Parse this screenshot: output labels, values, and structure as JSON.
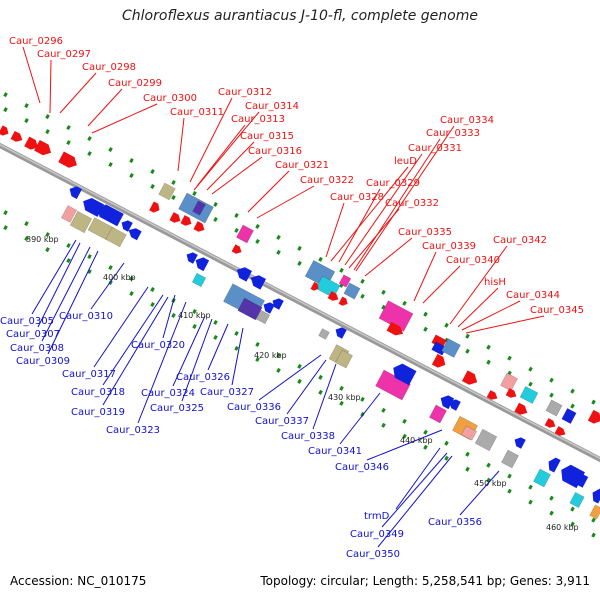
{
  "title": "Chloroflexus aurantiacus J-10-fl, complete genome",
  "footer": {
    "accession": "Accession: NC_010175",
    "summary": "Topology: circular; Length: 5,258,541 bp; Genes: 3,911"
  },
  "colors": {
    "plus_label": "#ee1111",
    "minus_label": "#1111cc",
    "backbone": "#999999",
    "tick": "#1a8a1a",
    "gene_red": "#ee1111",
    "gene_blue": "#1122dd",
    "gene_khaki": "#bdb584",
    "gene_magenta": "#ee33aa",
    "gene_steel": "#5b8fc8",
    "gene_purple": "#5533aa",
    "gene_cyan": "#22ccdd",
    "gene_pink": "#f0a0a0",
    "gene_gray": "#aaaaaa",
    "gene_orange": "#f0a040"
  },
  "scale_labels": [
    "390 kbp",
    "400 kbp",
    "410 kbp",
    "420 kbp",
    "430 kbp",
    "440 kbp",
    "450 kbp",
    "460 kbp"
  ],
  "plus_strand_labels": [
    "Caur_0296",
    "Caur_0297",
    "Caur_0298",
    "Caur_0299",
    "Caur_0300",
    "Caur_0311",
    "Caur_0312",
    "Caur_0313",
    "Caur_0314",
    "Caur_0315",
    "Caur_0316",
    "Caur_0321",
    "Caur_0322",
    "Caur_0328",
    "leuD",
    "Caur_0329",
    "Caur_0331",
    "Caur_0332",
    "Caur_0333",
    "Caur_0334",
    "Caur_0335",
    "Caur_0339",
    "Caur_0340",
    "Caur_0342",
    "hisH",
    "Caur_0344",
    "Caur_0345"
  ],
  "minus_strand_labels": [
    "Caur_0305",
    "Caur_0307",
    "Caur_0308",
    "Caur_0309",
    "Caur_0310",
    "Caur_0317",
    "Caur_0318",
    "Caur_0319",
    "Caur_0320",
    "Caur_0323",
    "Caur_0324",
    "Caur_0325",
    "Caur_0326",
    "Caur_0327",
    "Caur_0336",
    "Caur_0337",
    "Caur_0338",
    "Caur_0341",
    "Caur_0346",
    "trmD",
    "Caur_0349",
    "Caur_0350",
    "Caur_0356"
  ]
}
